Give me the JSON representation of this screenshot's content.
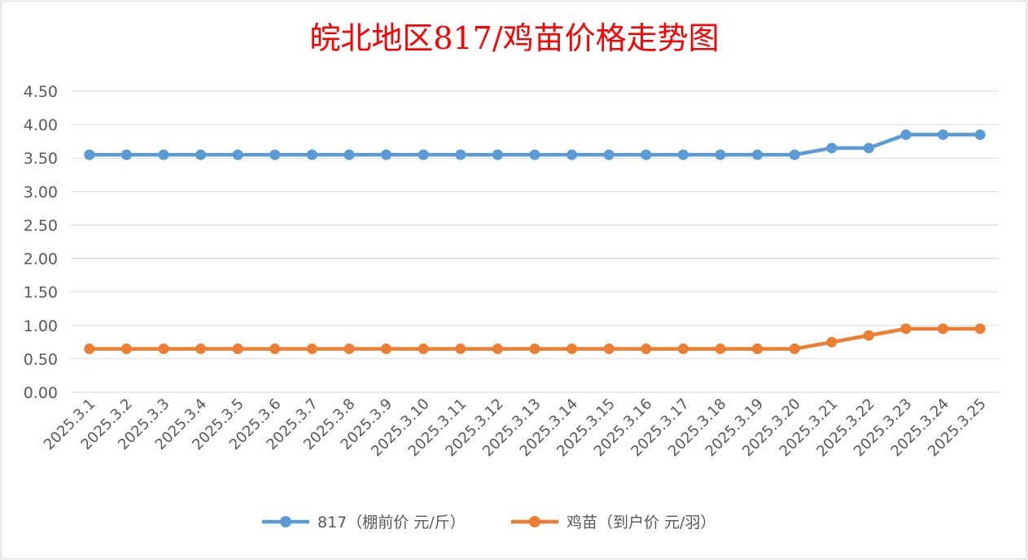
{
  "chart_data": {
    "type": "line",
    "title": "皖北地区817/鸡苗价格走势图",
    "xlabel": "",
    "ylabel": "",
    "ylim": [
      0,
      4.5
    ],
    "y_ticks": [
      "0.00",
      "0.50",
      "1.00",
      "1.50",
      "2.00",
      "2.50",
      "3.00",
      "3.50",
      "4.00",
      "4.50"
    ],
    "grid": true,
    "legend_position": "bottom",
    "categories": [
      "2025.3.1",
      "2025.3.2",
      "2025.3.3",
      "2025.3.4",
      "2025.3.5",
      "2025.3.6",
      "2025.3.7",
      "2025.3.8",
      "2025.3.9",
      "2025.3.10",
      "2025.3.11",
      "2025.3.12",
      "2025.3.13",
      "2025.3.14",
      "2025.3.15",
      "2025.3.16",
      "2025.3.17",
      "2025.3.18",
      "2025.3.19",
      "2025.3.20",
      "2025.3.21",
      "2025.3.22",
      "2025.3.23",
      "2025.3.24",
      "2025.3.25"
    ],
    "series": [
      {
        "name": "817（棚前价 元/斤）",
        "color": "#5b9bd5",
        "values": [
          3.55,
          3.55,
          3.55,
          3.55,
          3.55,
          3.55,
          3.55,
          3.55,
          3.55,
          3.55,
          3.55,
          3.55,
          3.55,
          3.55,
          3.55,
          3.55,
          3.55,
          3.55,
          3.55,
          3.55,
          3.65,
          3.65,
          3.85,
          3.85,
          3.85
        ]
      },
      {
        "name": "鸡苗（到户价 元/羽）",
        "color": "#ed7d31",
        "values": [
          0.65,
          0.65,
          0.65,
          0.65,
          0.65,
          0.65,
          0.65,
          0.65,
          0.65,
          0.65,
          0.65,
          0.65,
          0.65,
          0.65,
          0.65,
          0.65,
          0.65,
          0.65,
          0.65,
          0.65,
          0.75,
          0.85,
          0.95,
          0.95,
          0.95
        ]
      }
    ]
  }
}
